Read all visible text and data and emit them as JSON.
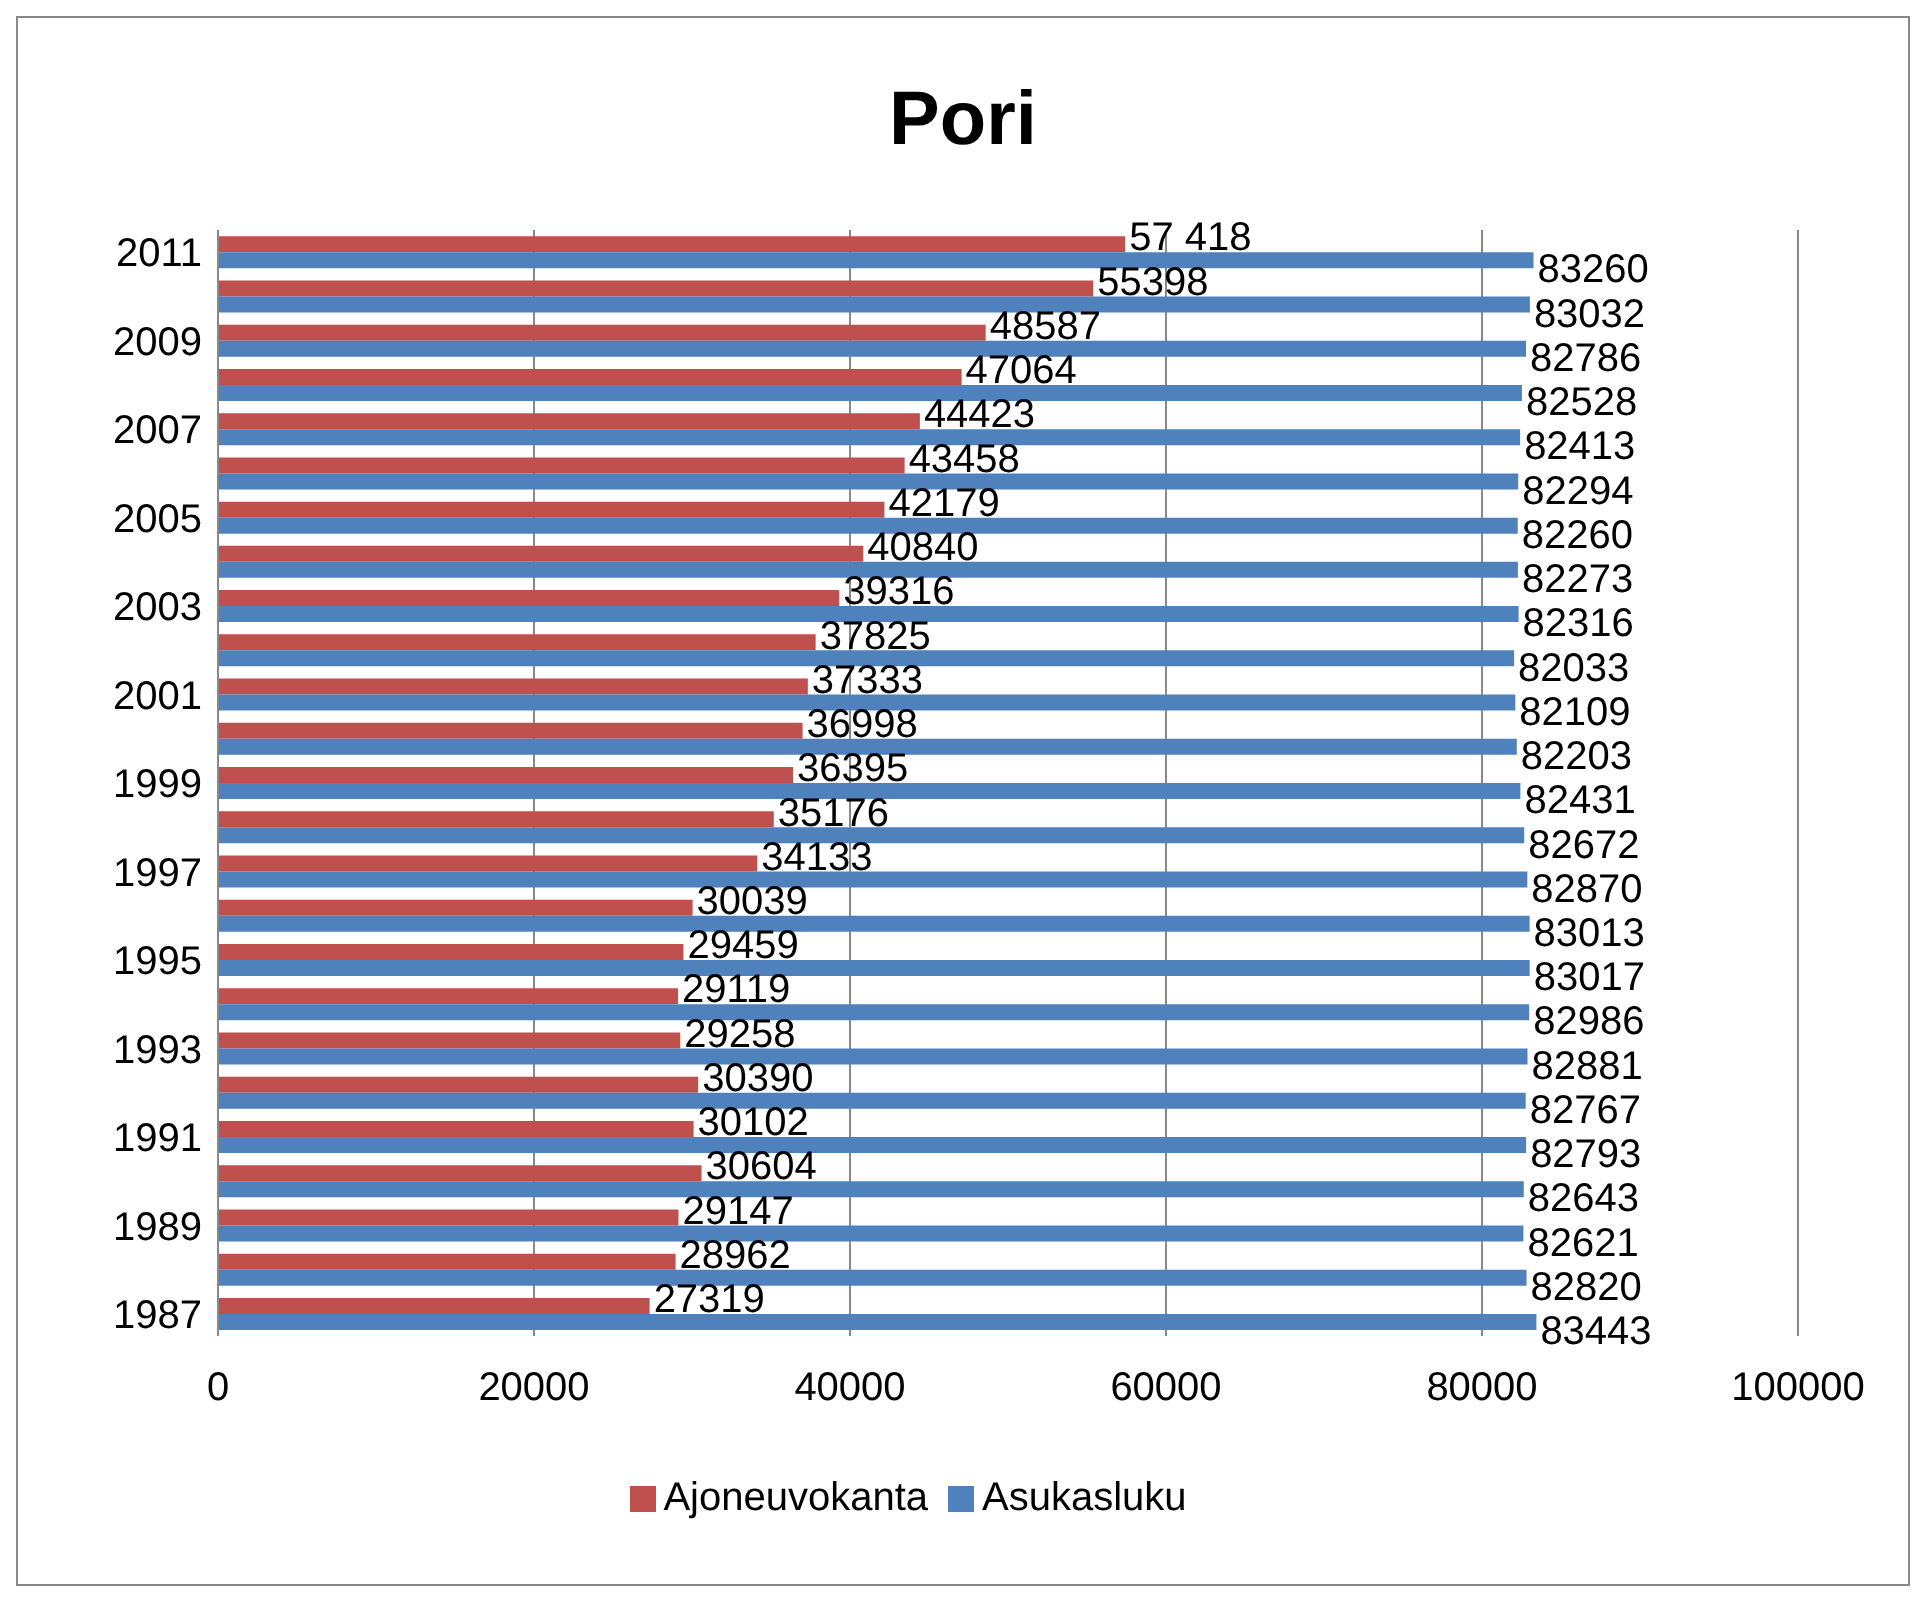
{
  "chart_data": {
    "type": "bar",
    "orientation": "horizontal",
    "title": "Pori",
    "categories": [
      "2011",
      null,
      "2009",
      null,
      "2007",
      null,
      "2005",
      null,
      "2003",
      null,
      "2001",
      null,
      "1999",
      null,
      "1997",
      null,
      "1995",
      null,
      "1993",
      null,
      "1991",
      null,
      "1989",
      null,
      "1987"
    ],
    "series": [
      {
        "name": "Ajoneuvokanta",
        "color": "#c0504d",
        "values": [
          57418,
          55398,
          48587,
          47064,
          44423,
          43458,
          42179,
          40840,
          39316,
          37825,
          37333,
          36998,
          36395,
          35176,
          34133,
          30039,
          29459,
          29119,
          29258,
          30390,
          30102,
          30604,
          29147,
          28962,
          27319
        ],
        "value_labels": [
          "57 418",
          "55398",
          "48587",
          "47064",
          "44423",
          "43458",
          "42179",
          "40840",
          "39316",
          "37825",
          "37333",
          "36998",
          "36395",
          "35176",
          "34133",
          "30039",
          "29459",
          "29119",
          "29258",
          "30390",
          "30102",
          "30604",
          "29147",
          "28962",
          "27319"
        ]
      },
      {
        "name": "Asukasluku",
        "color": "#4f81bd",
        "values": [
          83260,
          83032,
          82786,
          82528,
          82413,
          82294,
          82260,
          82273,
          82316,
          82033,
          82109,
          82203,
          82431,
          82672,
          82870,
          83013,
          83017,
          82986,
          82881,
          82767,
          82793,
          82643,
          82621,
          82820,
          83443
        ],
        "value_labels": [
          "83260",
          "83032",
          "82786",
          "82528",
          "82413",
          "82294",
          "82260",
          "82273",
          "82316",
          "82033",
          "82109",
          "82203",
          "82431",
          "82672",
          "82870",
          "83013",
          "83017",
          "82986",
          "82881",
          "82767",
          "82793",
          "82643",
          "82621",
          "82820",
          "83443"
        ]
      }
    ],
    "xlim": [
      0,
      100000
    ],
    "xticks": [
      0,
      20000,
      40000,
      60000,
      80000,
      100000
    ],
    "grid": "x",
    "legend": "bottom"
  }
}
